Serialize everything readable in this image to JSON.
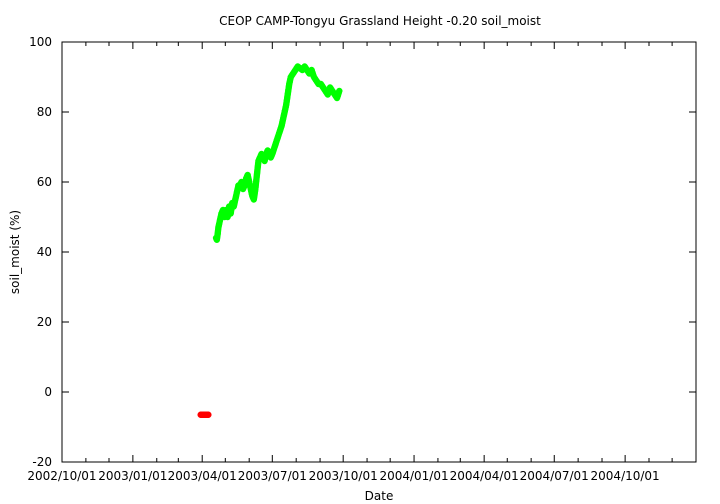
{
  "chart_data": {
    "type": "scatter",
    "title": "CEOP CAMP-Tongyu Grassland Height -0.20 soil_moist",
    "xlabel": "Date",
    "ylabel": "soil_moist (%)",
    "ylim": [
      -20,
      100
    ],
    "xlim": [
      "2002-10-01",
      "2005-01-01"
    ],
    "yticks": [
      -20,
      0,
      20,
      40,
      60,
      80,
      100
    ],
    "xticks": [
      {
        "date": "2002-10-01",
        "label": "2002/10/01"
      },
      {
        "date": "2003-01-01",
        "label": "2003/01/01"
      },
      {
        "date": "2003-04-01",
        "label": "2003/04/01"
      },
      {
        "date": "2003-07-01",
        "label": "2003/07/01"
      },
      {
        "date": "2003-10-01",
        "label": "2003/10/01"
      },
      {
        "date": "2004-01-01",
        "label": "2004/01/01"
      },
      {
        "date": "2004-04-01",
        "label": "2004/04/01"
      },
      {
        "date": "2004-07-01",
        "label": "2004/07/01"
      },
      {
        "date": "2004-10-01",
        "label": "2004/10/01"
      }
    ],
    "grid": false,
    "series": [
      {
        "color": "#00ff00",
        "points": [
          [
            "2003-04-19",
            44
          ],
          [
            "2003-04-20",
            43.5
          ],
          [
            "2003-04-21",
            45
          ],
          [
            "2003-04-22",
            47
          ],
          [
            "2003-04-24",
            49
          ],
          [
            "2003-04-26",
            51
          ],
          [
            "2003-04-28",
            52
          ],
          [
            "2003-04-30",
            50
          ],
          [
            "2003-05-02",
            52
          ],
          [
            "2003-05-04",
            50
          ],
          [
            "2003-05-06",
            53
          ],
          [
            "2003-05-08",
            51
          ],
          [
            "2003-05-10",
            54
          ],
          [
            "2003-05-12",
            53
          ],
          [
            "2003-05-14",
            55
          ],
          [
            "2003-05-16",
            57
          ],
          [
            "2003-05-18",
            59
          ],
          [
            "2003-05-20",
            59
          ],
          [
            "2003-05-22",
            60
          ],
          [
            "2003-05-24",
            58
          ],
          [
            "2003-05-26",
            59
          ],
          [
            "2003-05-28",
            61
          ],
          [
            "2003-05-30",
            62
          ],
          [
            "2003-06-01",
            60
          ],
          [
            "2003-06-03",
            58
          ],
          [
            "2003-06-05",
            56
          ],
          [
            "2003-06-07",
            55
          ],
          [
            "2003-06-09",
            58
          ],
          [
            "2003-06-10",
            60
          ],
          [
            "2003-06-12",
            64
          ],
          [
            "2003-06-13",
            66
          ],
          [
            "2003-06-15",
            67
          ],
          [
            "2003-06-17",
            68
          ],
          [
            "2003-06-19",
            67
          ],
          [
            "2003-06-21",
            66
          ],
          [
            "2003-06-23",
            68
          ],
          [
            "2003-06-25",
            69
          ],
          [
            "2003-06-27",
            68
          ],
          [
            "2003-06-29",
            67
          ],
          [
            "2003-07-01",
            68
          ],
          [
            "2003-07-04",
            70
          ],
          [
            "2003-07-07",
            72
          ],
          [
            "2003-07-10",
            74
          ],
          [
            "2003-07-13",
            76
          ],
          [
            "2003-07-16",
            79
          ],
          [
            "2003-07-19",
            82
          ],
          [
            "2003-07-21",
            85
          ],
          [
            "2003-07-23",
            88
          ],
          [
            "2003-07-25",
            90
          ],
          [
            "2003-07-28",
            91
          ],
          [
            "2003-07-31",
            92
          ],
          [
            "2003-08-03",
            93
          ],
          [
            "2003-08-06",
            92.5
          ],
          [
            "2003-08-09",
            92
          ],
          [
            "2003-08-12",
            93
          ],
          [
            "2003-08-15",
            92
          ],
          [
            "2003-08-18",
            91
          ],
          [
            "2003-08-21",
            92
          ],
          [
            "2003-08-24",
            90
          ],
          [
            "2003-08-27",
            89
          ],
          [
            "2003-08-30",
            88
          ],
          [
            "2003-09-02",
            88
          ],
          [
            "2003-09-05",
            87
          ],
          [
            "2003-09-08",
            86
          ],
          [
            "2003-09-11",
            85
          ],
          [
            "2003-09-14",
            87
          ],
          [
            "2003-09-17",
            86
          ],
          [
            "2003-09-20",
            85
          ],
          [
            "2003-09-23",
            84
          ],
          [
            "2003-09-26",
            86
          ]
        ]
      },
      {
        "color": "#ff0000",
        "points": [
          [
            "2003-03-30",
            -6.5
          ],
          [
            "2003-04-01",
            -6.5
          ],
          [
            "2003-04-03",
            -6.5
          ],
          [
            "2003-04-05",
            -6.5
          ],
          [
            "2003-04-07",
            -6.5
          ],
          [
            "2003-04-09",
            -6.5
          ]
        ]
      }
    ]
  }
}
